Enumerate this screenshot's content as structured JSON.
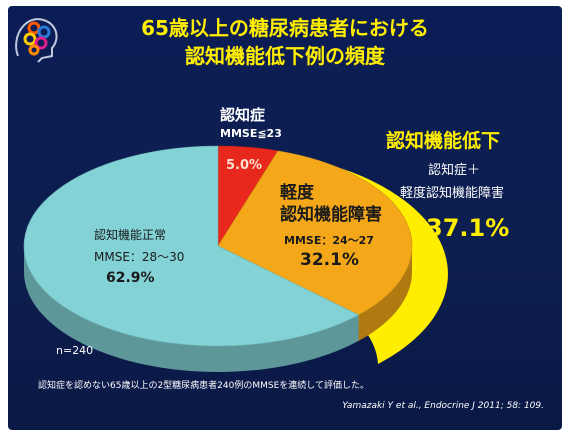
{
  "title": {
    "line1": "65歳以上の糖尿病患者における",
    "line2": "認知機能低下例の頻度"
  },
  "chart_data": {
    "type": "pie",
    "slices": [
      {
        "label": "認知症",
        "sub": "MMSE≦23",
        "value": 5.0,
        "value_text": "5.0%",
        "color": "#e8281c"
      },
      {
        "label": "軽度\n認知機能障害",
        "sub": "MMSE：24～27",
        "value": 32.1,
        "value_text": "32.1%",
        "color": "#f4a819"
      },
      {
        "label": "認知機能正常",
        "sub": "MMSE：28～30",
        "value": 62.9,
        "value_text": "62.9%",
        "color": "#82d2d6"
      }
    ],
    "n_label": "n=240",
    "highlight": {
      "title": "認知機能低下",
      "sub1": "認知症＋",
      "sub2": "軽度認知機能障害",
      "value_text": "37.1%",
      "color": "#ffee00"
    }
  },
  "note": "認知症を認めない65歳以上の2型糖尿病患者240例のMMSEを連続して評価した。",
  "citation": "Yamazaki Y et al., Endocrine J 2011; 58: 109.",
  "colors": {
    "background": "#0d1f4f",
    "title": "#ffee00",
    "dementia": "#e8281c",
    "mci": "#f4a819",
    "normal": "#82d2d6",
    "highlight": "#ffee00"
  }
}
